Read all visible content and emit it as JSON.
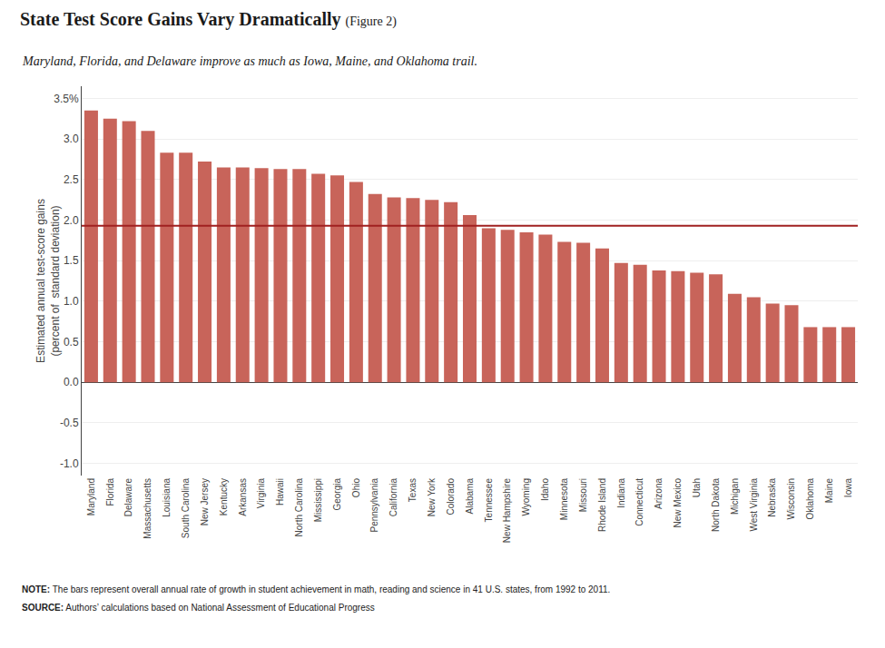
{
  "chart_data": {
    "type": "bar",
    "title": "State Test Score Gains Vary Dramatically",
    "title_note": "(Figure 2)",
    "subtitle": "Maryland, Florida, and Delaware improve as much as Iowa, Maine, and Oklahoma trail.",
    "ylabel": "Estimated annual test-score gains\n(percent of  standard deviation)",
    "categories": [
      "Maryland",
      "Florida",
      "Delaware",
      "Massachusetts",
      "Louisiana",
      "South Carolina",
      "New Jersey",
      "Kentucky",
      "Arkansas",
      "Virginia",
      "Hawaii",
      "North Carolina",
      "Mississippi",
      "Georgia",
      "Ohio",
      "Pennsylvania",
      "California",
      "Texas",
      "New York",
      "Colorado",
      "Alabama",
      "Tennessee",
      "New Hampshire",
      "Wyoming",
      "Idaho",
      "Minnesota",
      "Missouri",
      "Rhode Island",
      "Indiana",
      "Connecticut",
      "Arizona",
      "New Mexico",
      "Utah",
      "North Dakota",
      "Michigan",
      "West Virginia",
      "Nebraska",
      "Wisconsin",
      "Oklahoma",
      "Maine",
      "Iowa"
    ],
    "values": [
      3.35,
      3.25,
      3.22,
      3.1,
      2.83,
      2.83,
      2.72,
      2.65,
      2.65,
      2.64,
      2.63,
      2.63,
      2.57,
      2.55,
      2.47,
      2.32,
      2.28,
      2.27,
      2.25,
      2.22,
      2.06,
      1.9,
      1.88,
      1.85,
      1.82,
      1.73,
      1.72,
      1.65,
      1.47,
      1.45,
      1.38,
      1.37,
      1.35,
      1.33,
      1.09,
      1.05,
      0.97,
      0.95,
      0.68,
      0.68,
      0.68
    ],
    "color": "#c8645a",
    "reference_lines": [
      {
        "value": 1.93,
        "color": "#a02020"
      }
    ],
    "ylim": [
      -1.15,
      3.65
    ],
    "yticks": [
      {
        "value": 3.5,
        "label": "3.5%"
      },
      {
        "value": 3.0,
        "label": "3.0"
      },
      2.5,
      {
        "value": 2.0,
        "label": "2.0"
      },
      1.5,
      {
        "value": 1.0,
        "label": "1.0"
      },
      0.5,
      {
        "value": 0.0,
        "label": "0.0"
      },
      -0.5,
      {
        "value": -1.0,
        "label": "-1.0"
      }
    ],
    "grid": true,
    "notes": [
      {
        "label": "NOTE:",
        "text": " The bars represent overall annual rate of growth in student achievement in math, reading and science in 41 U.S. states, from 1992 to 2011."
      },
      {
        "label": "SOURCE:",
        "text": " Authors’ calculations based on National Assessment of Educational Progress"
      }
    ]
  }
}
